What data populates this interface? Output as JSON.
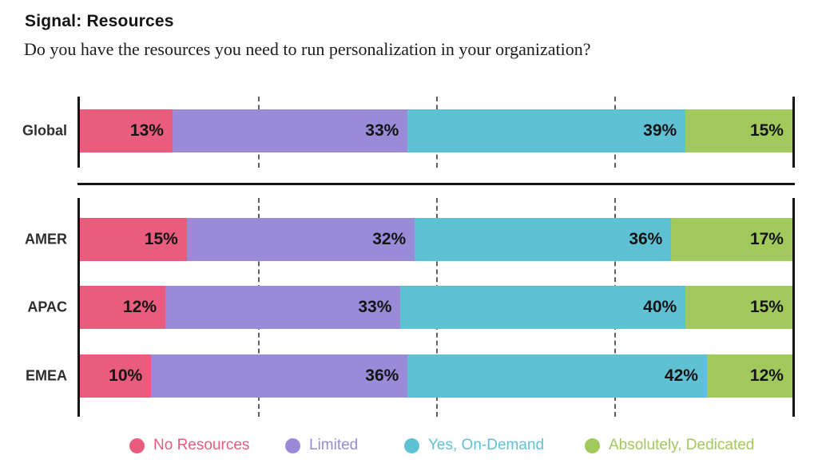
{
  "header": {
    "title": "Signal: Resources",
    "subtitle": "Do you have the resources you need to run personalization in your organization?"
  },
  "chart_data": {
    "type": "bar",
    "variant": "horizontal-stacked",
    "unit": "%",
    "categories": [
      "Global",
      "AMER",
      "APAC",
      "EMEA"
    ],
    "sections": [
      [
        "Global"
      ],
      [
        "AMER",
        "APAC",
        "EMEA"
      ]
    ],
    "series": [
      {
        "name": "No Resources",
        "color": "#E95C7D",
        "values": [
          13,
          15,
          12,
          10
        ]
      },
      {
        "name": "Limited",
        "color": "#9A8BD8",
        "values": [
          33,
          32,
          33,
          36
        ]
      },
      {
        "name": "Yes, On-Demand",
        "color": "#5FC1D4",
        "values": [
          39,
          36,
          40,
          42
        ]
      },
      {
        "name": "Absolutely, Dedicated",
        "color": "#A2C95B",
        "values": [
          15,
          17,
          15,
          12
        ]
      }
    ],
    "xlim": [
      0,
      100
    ],
    "gridlines_percent": [
      25,
      50,
      75
    ],
    "legend_position": "bottom",
    "value_labels": "inside-right",
    "axis_color": "#161616"
  }
}
